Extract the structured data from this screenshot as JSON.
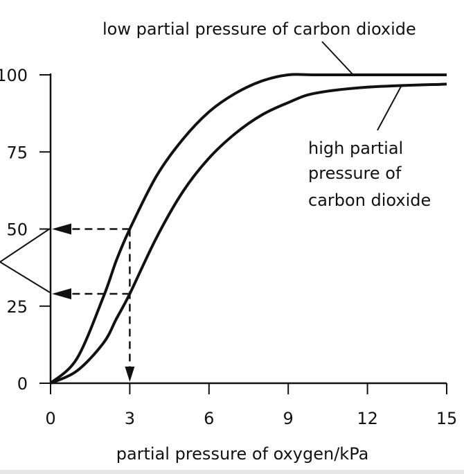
{
  "chart_data": {
    "type": "line",
    "xlabel": "partial pressure of oxygen/kPa",
    "ylabel": "",
    "xlim": [
      0,
      15
    ],
    "ylim": [
      0,
      100
    ],
    "x_ticks": [
      0,
      3,
      6,
      9,
      12,
      15
    ],
    "y_ticks": [
      0,
      25,
      50,
      75,
      100
    ],
    "x_tick_labels": [
      "0",
      "3",
      "6",
      "9",
      "12",
      "15"
    ],
    "y_tick_labels": [
      "0",
      "25",
      "50",
      "75",
      "100"
    ],
    "grid": false,
    "series": [
      {
        "name": "low partial pressure of carbon dioxide",
        "x": [
          0,
          1,
          2,
          2.5,
          3,
          4,
          5,
          6,
          7,
          8,
          9,
          10,
          12,
          15
        ],
        "y": [
          0,
          8,
          28,
          40,
          50,
          67,
          79,
          88,
          94,
          98,
          100,
          100,
          100,
          100
        ]
      },
      {
        "name": "high partial pressure of carbon dioxide",
        "x": [
          0,
          1,
          2,
          2.5,
          3,
          4,
          5,
          6,
          7,
          8,
          9,
          10,
          12,
          15
        ],
        "y": [
          0,
          4,
          13,
          21,
          29,
          47,
          62,
          73,
          81,
          87,
          91,
          94,
          96,
          97
        ]
      }
    ],
    "annotations": {
      "low_label": "low partial pressure of carbon dioxide",
      "high_label": [
        "high partial",
        "pressure of",
        "carbon dioxide"
      ]
    },
    "reference_lines": {
      "x_value": 3,
      "y_values": [
        50,
        29
      ]
    }
  }
}
